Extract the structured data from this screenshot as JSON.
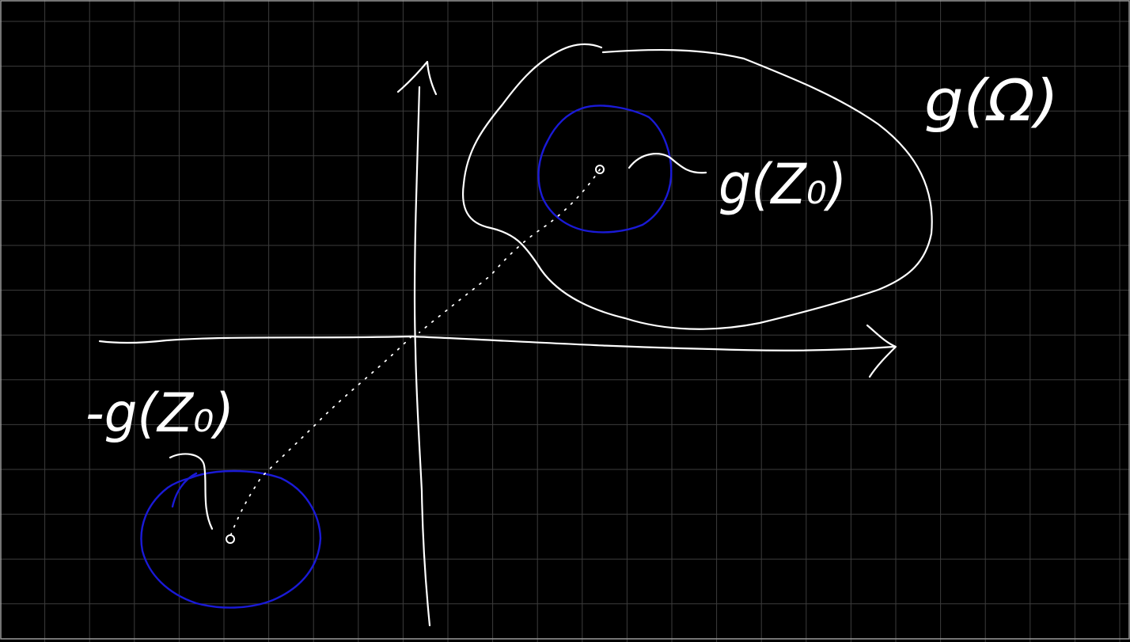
{
  "labels": {
    "image_point": "g(Z₀)",
    "image_region": "g(Ω)",
    "reflected_point": "-g(Z₀)"
  },
  "colors": {
    "background": "#000000",
    "grid": "#3c3c3c",
    "border": "#9a9a9a",
    "ink": "#ffffff",
    "disk": "#1a1ad6"
  }
}
